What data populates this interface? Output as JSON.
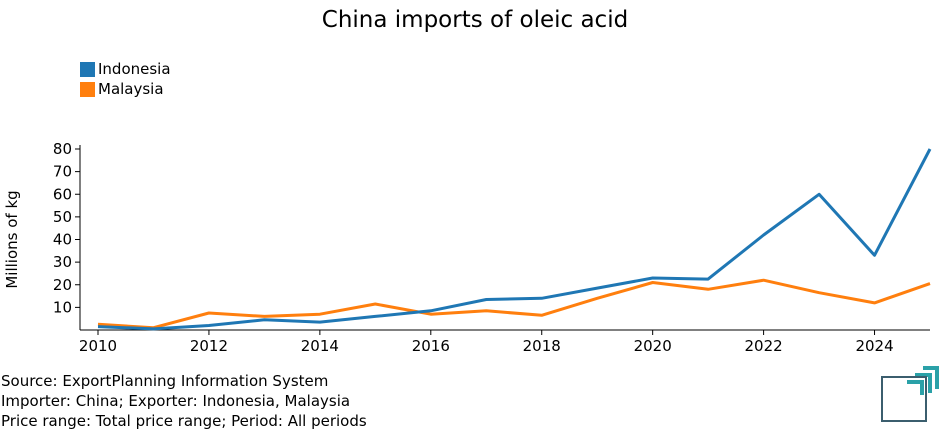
{
  "title": "China imports of oleic acid",
  "legend": [
    {
      "label": "Indonesia",
      "color": "#1f77b4"
    },
    {
      "label": "Malaysia",
      "color": "#ff7f0e"
    }
  ],
  "footer": {
    "line1": "Source: ExportPlanning Information System",
    "line2": "Importer: China; Exporter: Indonesia, Malaysia",
    "line3": "Price range: Total price range; Period: All periods"
  },
  "logo_icon": "exportplanning-logo-icon",
  "chart_data": {
    "type": "line",
    "title": "China imports of oleic acid",
    "xlabel": "",
    "ylabel": "Millions of kg",
    "xlim": [
      2010,
      2025
    ],
    "ylim": [
      0,
      80
    ],
    "x": [
      2010,
      2011,
      2012,
      2013,
      2014,
      2015,
      2016,
      2017,
      2018,
      2019,
      2020,
      2021,
      2022,
      2023,
      2024,
      2025
    ],
    "xticks": [
      2010,
      2012,
      2014,
      2016,
      2018,
      2020,
      2022,
      2024
    ],
    "yticks": [
      10,
      20,
      30,
      40,
      50,
      60,
      70,
      80
    ],
    "grid": false,
    "legend_position": "top-left",
    "series": [
      {
        "name": "Indonesia",
        "color": "#1f77b4",
        "values": [
          1.5,
          0.5,
          2,
          4.5,
          3.5,
          6,
          8.5,
          13.5,
          14,
          18.5,
          23,
          22.5,
          42,
          60,
          33,
          80
        ]
      },
      {
        "name": "Malaysia",
        "color": "#ff7f0e",
        "values": [
          2.5,
          1,
          7.5,
          6,
          7,
          11.5,
          7,
          8.5,
          6.5,
          14,
          21,
          18,
          22,
          16.5,
          12,
          20.5
        ]
      }
    ]
  }
}
